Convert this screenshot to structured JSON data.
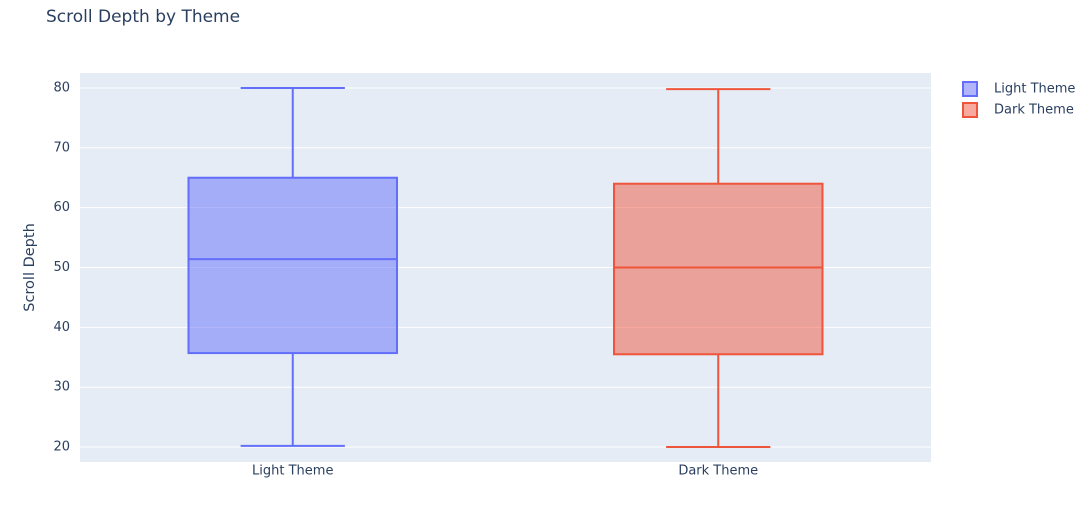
{
  "chart_data": {
    "type": "box",
    "title": "Scroll Depth by Theme",
    "xlabel": "",
    "ylabel": "Scroll Depth",
    "ylim": [
      17.5,
      82.5
    ],
    "yticks": [
      20,
      30,
      40,
      50,
      60,
      70,
      80
    ],
    "grid": true,
    "legend_position": "top-right",
    "categories": [
      "Light Theme",
      "Dark Theme"
    ],
    "series": [
      {
        "name": "Light Theme",
        "color": "#636efa",
        "min": 20.2,
        "q1": 35.7,
        "median": 51.4,
        "q3": 65.0,
        "max": 80.0
      },
      {
        "name": "Dark Theme",
        "color": "#ef553b",
        "min": 20.0,
        "q1": 35.5,
        "median": 50.0,
        "q3": 64.0,
        "max": 79.8
      }
    ]
  }
}
